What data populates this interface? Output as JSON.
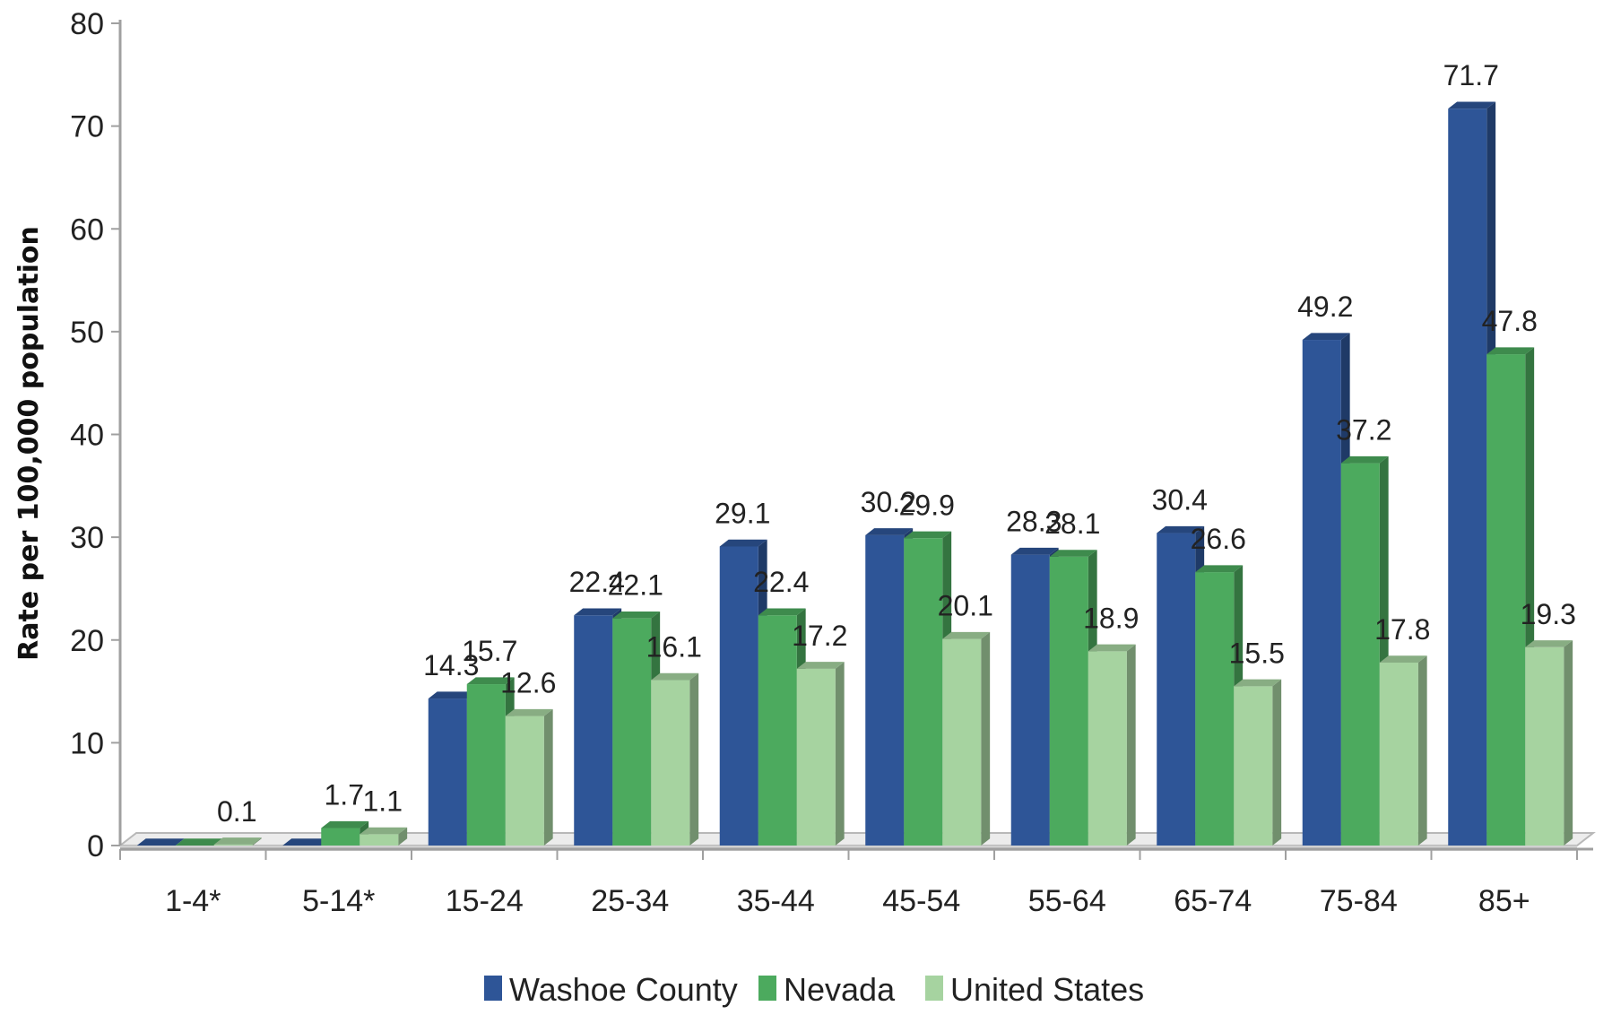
{
  "chart_data": {
    "type": "bar",
    "title": "",
    "xlabel": "",
    "ylabel": "Rate per 100,000 population",
    "ylim": [
      0,
      80
    ],
    "yticks": [
      0,
      10,
      20,
      30,
      40,
      50,
      60,
      70,
      80
    ],
    "categories": [
      "1-4*",
      "5-14*",
      "15-24",
      "25-34",
      "35-44",
      "45-54",
      "55-64",
      "65-74",
      "75-84",
      "85+"
    ],
    "series": [
      {
        "name": "Washoe County",
        "color": "#2e5597",
        "values": [
          0,
          0,
          14.3,
          22.4,
          29.1,
          30.2,
          28.3,
          30.4,
          49.2,
          71.7
        ],
        "labels": [
          "",
          "",
          "14.3",
          "22.4",
          "29.1",
          "30.2",
          "28.3",
          "30.4",
          "49.2",
          "71.7"
        ]
      },
      {
        "name": "Nevada",
        "color": "#4caa5e",
        "values": [
          0,
          1.7,
          15.7,
          22.1,
          22.4,
          29.9,
          28.1,
          26.6,
          37.2,
          47.8
        ],
        "labels": [
          "",
          "1.7",
          "15.7",
          "22.1",
          "22.4",
          "29.9",
          "28.1",
          "26.6",
          "37.2",
          "47.8"
        ]
      },
      {
        "name": "United States",
        "color": "#a6d3a0",
        "values": [
          0.1,
          1.1,
          12.6,
          16.1,
          17.2,
          20.1,
          18.9,
          15.5,
          17.8,
          19.3
        ],
        "labels": [
          "0.1",
          "1.1",
          "12.6",
          "16.1",
          "17.2",
          "20.1",
          "18.9",
          "15.5",
          "17.8",
          "19.3"
        ]
      }
    ],
    "legend_position": "bottom",
    "grid": false
  }
}
